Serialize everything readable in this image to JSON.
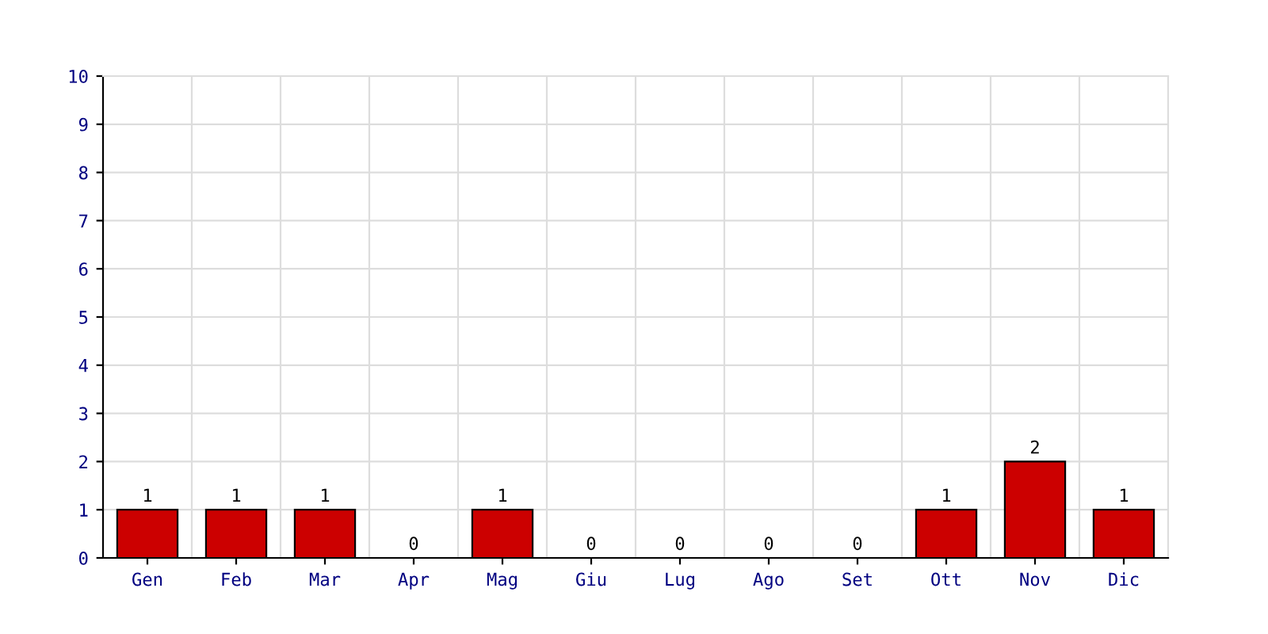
{
  "chart_data": {
    "type": "bar",
    "categories": [
      "Gen",
      "Feb",
      "Mar",
      "Apr",
      "Mag",
      "Giu",
      "Lug",
      "Ago",
      "Set",
      "Ott",
      "Nov",
      "Dic"
    ],
    "values": [
      1,
      1,
      1,
      0,
      1,
      0,
      0,
      0,
      0,
      1,
      2,
      1
    ],
    "color": "#cc0000",
    "ylim": [
      0,
      10
    ],
    "yticks": [
      0,
      1,
      2,
      3,
      4,
      5,
      6,
      7,
      8,
      9,
      10
    ],
    "grid": true,
    "data_labels": true
  }
}
